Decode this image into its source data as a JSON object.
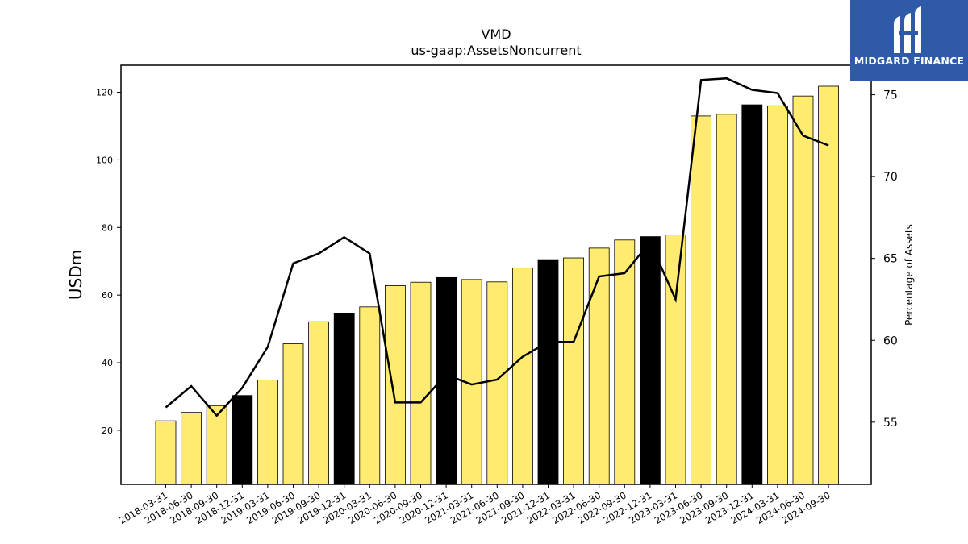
{
  "brand": {
    "name": "MIDGARD FINANCE",
    "bg_color": "#2f5aa8"
  },
  "chart_data": {
    "type": "bar",
    "title": "VMD",
    "subtitle": "us-gaap:AssetsNoncurrent",
    "ylabel": "USDm",
    "y2label": "Percentage of Assets",
    "ylim": [
      4,
      128
    ],
    "y2lim": [
      51.2,
      76.8
    ],
    "yticks": [
      20,
      40,
      60,
      80,
      100,
      120
    ],
    "y2ticks": [
      55,
      60,
      65,
      70,
      75
    ],
    "bar_color": "#ffeb70",
    "highlight_color": "#000000",
    "categories": [
      "2018-03-31",
      "2018-06-30",
      "2018-09-30",
      "2018-12-31",
      "2019-03-31",
      "2019-06-30",
      "2019-09-30",
      "2019-12-31",
      "2020-03-31",
      "2020-06-30",
      "2020-09-30",
      "2020-12-31",
      "2021-03-31",
      "2021-06-30",
      "2021-09-30",
      "2021-12-31",
      "2022-03-31",
      "2022-06-30",
      "2022-09-30",
      "2022-12-31",
      "2023-03-31",
      "2023-06-30",
      "2023-09-30",
      "2023-12-31",
      "2024-03-31",
      "2024-06-30",
      "2024-09-30"
    ],
    "series": [
      {
        "type": "bar",
        "values": [
          22.8,
          25.3,
          27.3,
          30.3,
          34.9,
          45.6,
          52.1,
          54.7,
          56.5,
          62.8,
          63.8,
          65.2,
          64.6,
          63.9,
          68.0,
          70.5,
          71.0,
          73.9,
          76.3,
          77.3,
          77.8,
          113.0,
          113.5,
          116.3,
          116.0,
          118.9,
          121.8
        ],
        "highlight": [
          false,
          false,
          false,
          true,
          false,
          false,
          false,
          true,
          false,
          false,
          false,
          true,
          false,
          false,
          false,
          true,
          false,
          false,
          false,
          true,
          false,
          false,
          false,
          true,
          false,
          false,
          false
        ]
      },
      {
        "type": "line",
        "axis": "right",
        "values": [
          55.9,
          57.2,
          55.4,
          57.1,
          59.6,
          64.7,
          65.3,
          66.3,
          65.3,
          56.2,
          56.2,
          57.9,
          57.3,
          57.6,
          59.0,
          59.9,
          59.9,
          63.9,
          64.1,
          66.0,
          62.5,
          75.9,
          76.0,
          75.3,
          75.1,
          72.5,
          71.9
        ]
      }
    ]
  }
}
